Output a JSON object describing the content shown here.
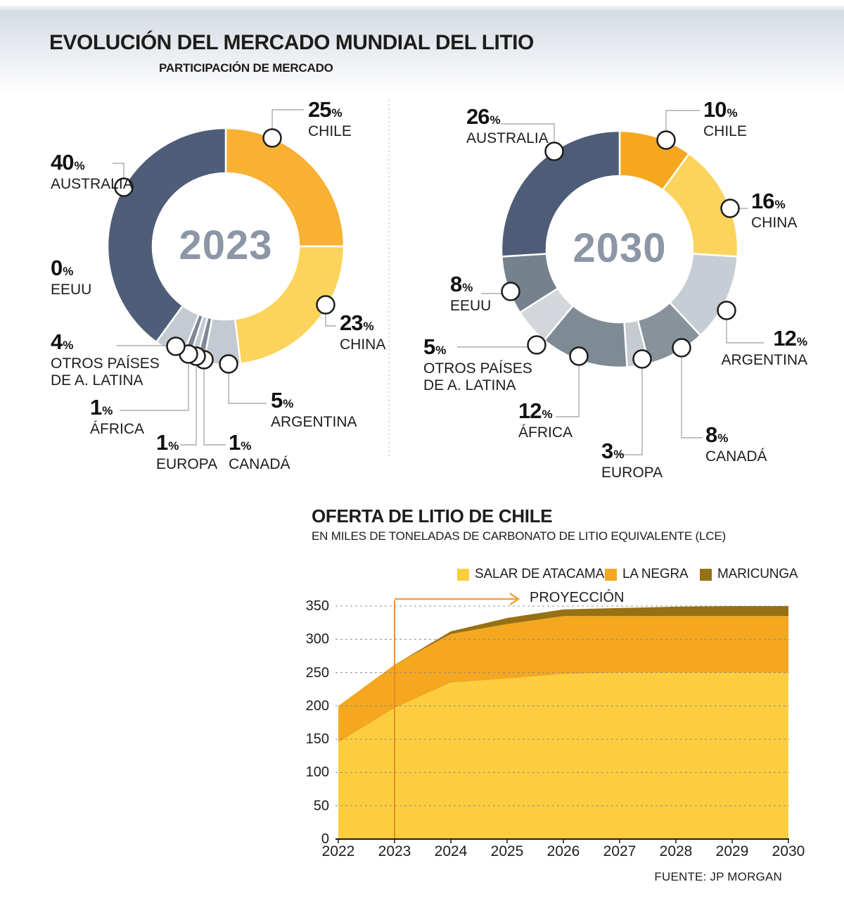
{
  "header": {
    "title": "EVOLUCIÓN DEL MERCADO MUNDIAL DEL LITIO",
    "subtitle": "PARTICIPACIÓN DE MERCADO"
  },
  "source": "FUENTE: JP MORGAN",
  "chart_data": [
    {
      "type": "pie",
      "subtype": "donut",
      "center_label": "2023",
      "units": "%",
      "slices": [
        {
          "label": "CHILE",
          "value": 25,
          "color": "#F8B133"
        },
        {
          "label": "CHINA",
          "value": 23,
          "color": "#FCD45C"
        },
        {
          "label": "ARGENTINA",
          "value": 5,
          "color": "#C3CAD2"
        },
        {
          "label": "CANADÁ",
          "value": 1,
          "color": "#7D8894"
        },
        {
          "label": "EUROPA",
          "value": 1,
          "color": "#C3CAD2"
        },
        {
          "label": "ÁFRICA",
          "value": 1,
          "color": "#7D8894"
        },
        {
          "label": "OTROS PAÍSES\nDE A. LATINA",
          "value": 4,
          "color": "#C3CAD2"
        },
        {
          "label": "EEUU",
          "value": 0,
          "color": "#C3CAD2"
        },
        {
          "label": "AUSTRALIA",
          "value": 40,
          "color": "#4E5E78"
        }
      ]
    },
    {
      "type": "pie",
      "subtype": "donut",
      "center_label": "2030",
      "units": "%",
      "slices": [
        {
          "label": "CHILE",
          "value": 10,
          "color": "#F5A81F"
        },
        {
          "label": "CHINA",
          "value": 16,
          "color": "#FCD45C"
        },
        {
          "label": "ARGENTINA",
          "value": 12,
          "color": "#C7CDD5"
        },
        {
          "label": "CANADÁ",
          "value": 8,
          "color": "#87929B"
        },
        {
          "label": "EUROPA",
          "value": 3,
          "color": "#C6CBD1"
        },
        {
          "label": "ÁFRICA",
          "value": 12,
          "color": "#7E8B94"
        },
        {
          "label": "OTROS PAÍSES\nDE A. LATINA",
          "value": 5,
          "color": "#D3D7DB"
        },
        {
          "label": "EEUU",
          "value": 8,
          "color": "#75828D"
        },
        {
          "label": "AUSTRALIA",
          "value": 26,
          "color": "#4D5C77"
        }
      ]
    },
    {
      "type": "area",
      "stacked": true,
      "title": "OFERTA DE LITIO DE CHILE",
      "subtitle": "EN MILES DE TONELADAS DE CARBONATO DE LITIO EQUIVALENTE (LCE)",
      "x": [
        2022,
        2023,
        2024,
        2025,
        2026,
        2027,
        2028,
        2029,
        2030
      ],
      "series": [
        {
          "name": "SALAR DE ATACAMA",
          "color": "#FCCE3F",
          "values": [
            145,
            197,
            235,
            241,
            248,
            250,
            250,
            250,
            250
          ]
        },
        {
          "name": "LA NEGRA",
          "color": "#F5A71F",
          "values": [
            55,
            65,
            73,
            82,
            87,
            85,
            85,
            85,
            85
          ]
        },
        {
          "name": "MARICUNGA",
          "color": "#967114",
          "values": [
            0,
            0,
            4,
            9,
            10,
            12,
            14,
            15,
            15
          ]
        }
      ],
      "ylim": [
        0,
        350
      ],
      "yticks": [
        0,
        50,
        100,
        150,
        200,
        250,
        300,
        350
      ],
      "grid": "horizontal-dashed",
      "legend_position": "top",
      "annotation": {
        "label": "PROYECCIÓN",
        "x": 2023
      },
      "annotation_colors": {
        "arrow": "#F2A33C",
        "line": "#E8832A"
      }
    }
  ]
}
